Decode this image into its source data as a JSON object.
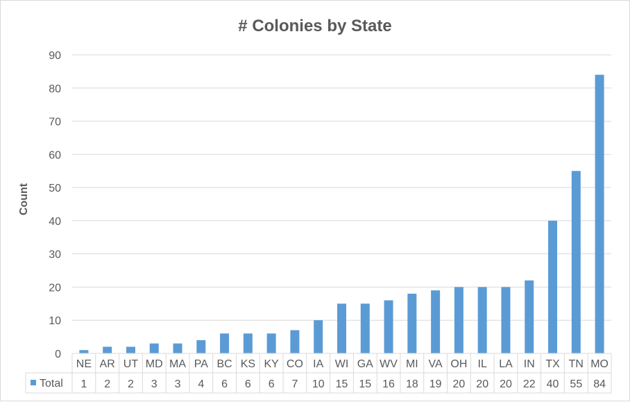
{
  "chart_data": {
    "type": "bar",
    "title": "# Colonies by State",
    "xlabel": "",
    "ylabel": "Count",
    "ylim": [
      0,
      90
    ],
    "yticks": [
      0,
      10,
      20,
      30,
      40,
      50,
      60,
      70,
      80,
      90
    ],
    "grid": true,
    "bar_color": "#5b9bd5",
    "categories": [
      "NE",
      "AR",
      "UT",
      "MD",
      "MA",
      "PA",
      "BC",
      "KS",
      "KY",
      "CO",
      "IA",
      "WI",
      "GA",
      "WV",
      "MI",
      "VA",
      "OH",
      "IL",
      "LA",
      "IN",
      "TX",
      "TN",
      "MO"
    ],
    "series": [
      {
        "name": "Total",
        "values": [
          1,
          2,
          2,
          3,
          3,
          4,
          6,
          6,
          6,
          7,
          10,
          15,
          15,
          16,
          18,
          19,
          20,
          20,
          20,
          22,
          40,
          55,
          84
        ]
      }
    ],
    "legend": "data-table"
  }
}
